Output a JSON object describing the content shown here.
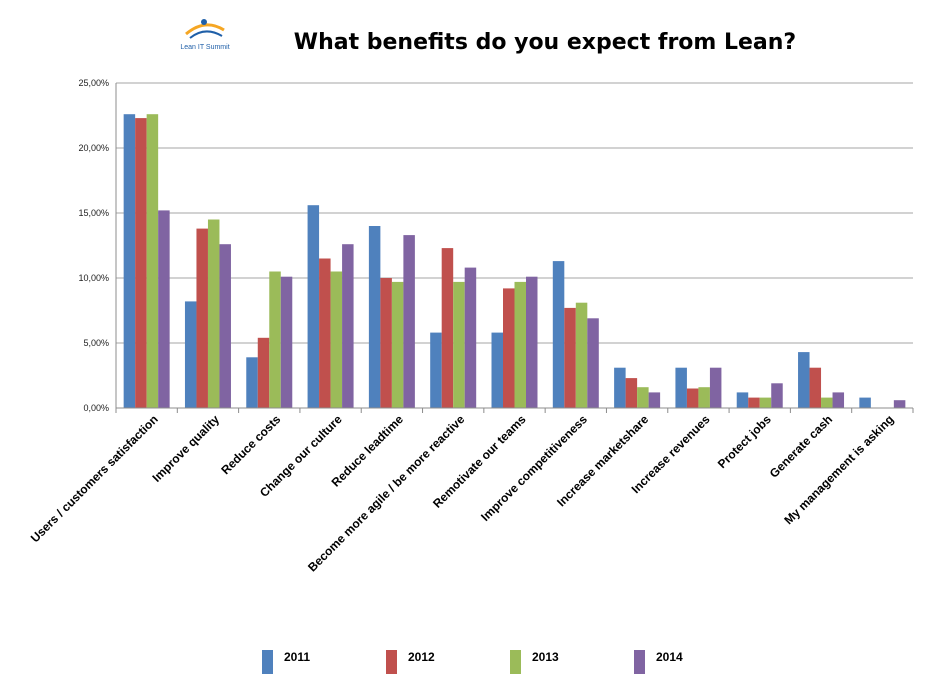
{
  "header": {
    "logo_text": "Lean IT Summit",
    "title": "What benefits do you expect from Lean?"
  },
  "chart_data": {
    "type": "bar",
    "title": "What benefits do you expect from Lean?",
    "xlabel": "",
    "ylabel": "",
    "ylim": [
      0,
      25
    ],
    "y_ticks": [
      "0,00%",
      "5,00%",
      "10,00%",
      "15,00%",
      "20,00%",
      "25,00%"
    ],
    "grid": true,
    "legend_position": "bottom",
    "categories": [
      "Users / customers satisfaction",
      "Improve quality",
      "Reduce costs",
      "Change our culture",
      "Reduce leadtime",
      "Become more agile / be more reactive",
      "Remotivate our teams",
      "Improve competitiveness",
      "Increase marketshare",
      "Increase revenues",
      "Protect jobs",
      "Generate cash",
      "My management is asking"
    ],
    "series": [
      {
        "name": "2011",
        "color": "#4f81bd",
        "values": [
          22.6,
          8.2,
          3.9,
          15.6,
          14.0,
          5.8,
          5.8,
          11.3,
          3.1,
          3.1,
          1.2,
          4.3,
          0.8
        ]
      },
      {
        "name": "2012",
        "color": "#c0504d",
        "values": [
          22.3,
          13.8,
          5.4,
          11.5,
          10.0,
          12.3,
          9.2,
          7.7,
          2.3,
          1.5,
          0.8,
          3.1,
          0.0
        ]
      },
      {
        "name": "2013",
        "color": "#9bbb59",
        "values": [
          22.6,
          14.5,
          10.5,
          10.5,
          9.7,
          9.7,
          9.7,
          8.1,
          1.6,
          1.6,
          0.8,
          0.8,
          0.0
        ]
      },
      {
        "name": "2014",
        "color": "#8064a2",
        "values": [
          15.2,
          12.6,
          10.1,
          12.6,
          13.3,
          10.8,
          10.1,
          6.9,
          1.2,
          3.1,
          1.9,
          1.2,
          0.6
        ]
      }
    ]
  }
}
